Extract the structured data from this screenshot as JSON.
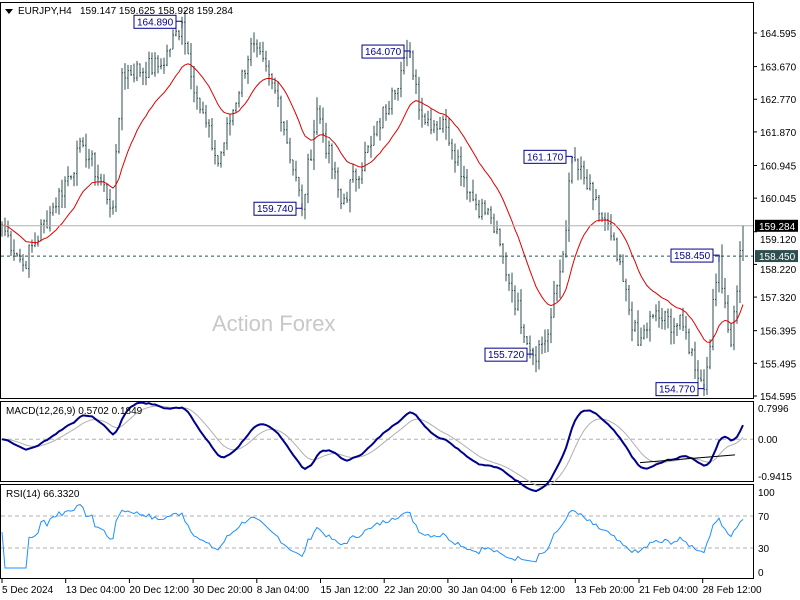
{
  "header": {
    "symbol": "EURJPY,H4",
    "ohlc": "159.147 159.625 158.928 159.284"
  },
  "watermark": "Action Forex",
  "colors": {
    "bars": "#2f4f4f",
    "ma": "#e00000",
    "macd": "#00008b",
    "signal": "#b0b0b0",
    "rsi": "#1e90ff",
    "frame": "#000000"
  },
  "chart_data": {
    "type": "line",
    "title": "EURJPY,H4",
    "price_axis": {
      "ticks": [
        "164.595",
        "163.670",
        "162.770",
        "161.870",
        "160.945",
        "160.045",
        "159.120",
        "158.220",
        "157.320",
        "156.395",
        "155.495",
        "154.595"
      ],
      "ylim": [
        154.595,
        164.595
      ]
    },
    "current_price": "159.284",
    "level_line": "158.450",
    "close_waypoints": [
      [
        0,
        159.3
      ],
      [
        7,
        158.2
      ],
      [
        17,
        159.8
      ],
      [
        27,
        161.5
      ],
      [
        37,
        159.8
      ],
      [
        40,
        163.5
      ],
      [
        53,
        163.7
      ],
      [
        60,
        164.89
      ],
      [
        65,
        162.8
      ],
      [
        72,
        161.0
      ],
      [
        83,
        164.3
      ],
      [
        92,
        162.8
      ],
      [
        100,
        159.74
      ],
      [
        105,
        162.5
      ],
      [
        113,
        159.9
      ],
      [
        123,
        161.5
      ],
      [
        130,
        163.0
      ],
      [
        136,
        164.07
      ],
      [
        140,
        162.3
      ],
      [
        148,
        162.0
      ],
      [
        157,
        160.0
      ],
      [
        163,
        159.5
      ],
      [
        170,
        157.5
      ],
      [
        177,
        155.72
      ],
      [
        182,
        156.3
      ],
      [
        187,
        158.5
      ],
      [
        190,
        161.17
      ],
      [
        197,
        160.0
      ],
      [
        203,
        159.0
      ],
      [
        212,
        156.0
      ],
      [
        217,
        156.8
      ],
      [
        227,
        156.5
      ],
      [
        234,
        154.77
      ],
      [
        239,
        158.45
      ],
      [
        243,
        156.0
      ],
      [
        247,
        159.28
      ]
    ],
    "annotations": [
      {
        "bar": 60,
        "price": 164.89,
        "label": "164.890",
        "side": "high"
      },
      {
        "bar": 100,
        "price": 159.74,
        "label": "159.740",
        "side": "low"
      },
      {
        "bar": 136,
        "price": 164.07,
        "label": "164.070",
        "side": "high"
      },
      {
        "bar": 190,
        "price": 161.17,
        "label": "161.170",
        "side": "high"
      },
      {
        "bar": 177,
        "price": 155.72,
        "label": "155.720",
        "side": "low"
      },
      {
        "bar": 239,
        "price": 158.45,
        "label": "158.450",
        "side": "high"
      },
      {
        "bar": 234,
        "price": 154.77,
        "label": "154.770",
        "side": "low"
      }
    ],
    "macd": {
      "label": "MACD(12,26,9) 0.5702 0.1849",
      "ticks": [
        "0.7996",
        "0.00",
        "-0.9415"
      ],
      "ylim": [
        -0.9415,
        0.7996
      ]
    },
    "rsi": {
      "label": "RSI(14) 66.3320",
      "ticks": [
        "100",
        "70",
        "30",
        "0"
      ],
      "ylim": [
        0,
        100
      ]
    },
    "x_ticks": [
      "5 Dec 2024",
      "13 Dec 04:00",
      "20 Dec 12:00",
      "30 Dec 20:00",
      "8 Jan 04:00",
      "15 Jan 12:00",
      "22 Jan 20:00",
      "30 Jan 04:00",
      "6 Feb 12:00",
      "13 Feb 20:00",
      "21 Feb 04:00",
      "28 Feb 12:00"
    ]
  }
}
